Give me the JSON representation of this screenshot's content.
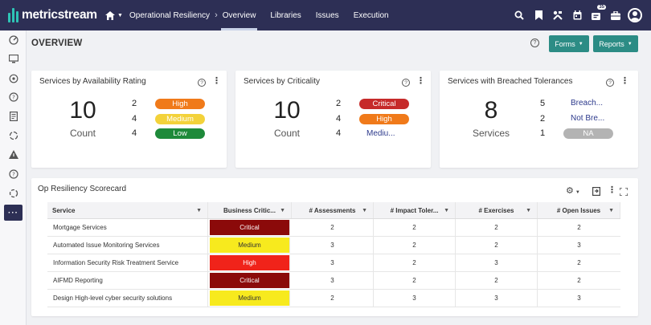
{
  "app": {
    "logo_text": "metricstream"
  },
  "nav": {
    "breadcrumb": "Operational Resiliency",
    "items": [
      "Overview",
      "Libraries",
      "Issues",
      "Execution"
    ],
    "notification_count": "35"
  },
  "page": {
    "title": "OVERVIEW",
    "forms_label": "Forms",
    "reports_label": "Reports"
  },
  "cards": {
    "availability": {
      "title": "Services by Availability Rating",
      "total": "10",
      "total_label": "Count",
      "rows": [
        {
          "count": "2",
          "label": "High",
          "color": "#f07a1a"
        },
        {
          "count": "4",
          "label": "Medium",
          "color": "#f3d23a"
        },
        {
          "count": "4",
          "label": "Low",
          "color": "#1e8a3a"
        }
      ]
    },
    "criticality": {
      "title": "Services by Criticality",
      "total": "10",
      "total_label": "Count",
      "rows": [
        {
          "count": "2",
          "label": "Critical",
          "color": "#c62a2a"
        },
        {
          "count": "4",
          "label": "High",
          "color": "#f07a1a"
        },
        {
          "count": "4",
          "label": "Mediu..."
        }
      ]
    },
    "breached": {
      "title": "Services with Breached Tolerances",
      "total": "8",
      "total_label": "Services",
      "rows": [
        {
          "count": "5",
          "label": "Breach..."
        },
        {
          "count": "2",
          "label": "Not Bre..."
        },
        {
          "count": "1",
          "label": "NA",
          "color": "#b3b3b3"
        }
      ]
    }
  },
  "scorecard": {
    "title": "Op Resiliency Scorecard",
    "columns": [
      "Service",
      "Business Critic...",
      "# Assessments",
      "# Impact Toler...",
      "# Exercises",
      "# Open Issues"
    ],
    "rows": [
      {
        "service": "Mortgage Services",
        "criticality": "Critical",
        "assessments": "2",
        "impact": "2",
        "exercises": "2",
        "issues": "2"
      },
      {
        "service": "Automated Issue Monitoring Services",
        "criticality": "Medium",
        "assessments": "3",
        "impact": "2",
        "exercises": "2",
        "issues": "3"
      },
      {
        "service": "Information Security Risk Treatment Service",
        "criticality": "High",
        "assessments": "3",
        "impact": "2",
        "exercises": "3",
        "issues": "2"
      },
      {
        "service": "AIFMD Reporting",
        "criticality": "Critical",
        "assessments": "3",
        "impact": "2",
        "exercises": "2",
        "issues": "2"
      },
      {
        "service": "Design High-level cyber security solutions",
        "criticality": "Medium",
        "assessments": "2",
        "impact": "3",
        "exercises": "3",
        "issues": "3"
      }
    ],
    "criticality_colors": {
      "Critical": "#8b0a0a",
      "Medium": "#f7ea1e",
      "High": "#f0231a"
    }
  }
}
